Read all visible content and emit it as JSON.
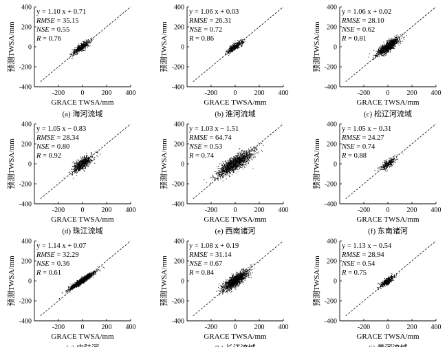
{
  "chart_data": [
    {
      "type": "scatter",
      "caption": "(a) 海河流域",
      "xlabel": "GRACE TWSA/mm",
      "ylabel": "预测TWSA/mm",
      "xlim": [
        -400,
        400
      ],
      "ylim": [
        -400,
        400
      ],
      "xticks": [
        -200,
        0,
        200,
        400
      ],
      "yticks": [
        -400,
        -200,
        0,
        200,
        400
      ],
      "equation": "y = 1.10 x + 0.71",
      "rmse": "35.15",
      "nse": "0.55",
      "r": "0.76",
      "cloud": {
        "x_center": -10,
        "y_center": -5,
        "x_spread": 70,
        "y_spread": 40,
        "n": 500
      }
    },
    {
      "type": "scatter",
      "caption": "(b) 淮河流域",
      "xlabel": "GRACE TWSA/mm",
      "ylabel": "预测TWSA/mm",
      "xlim": [
        -400,
        400
      ],
      "ylim": [
        -400,
        400
      ],
      "xticks": [
        -200,
        0,
        200,
        400
      ],
      "yticks": [
        -400,
        -200,
        0,
        200,
        400
      ],
      "equation": "y = 1.06 x + 0.03",
      "rmse": "26.31",
      "nse": "0.72",
      "r": "0.86",
      "cloud": {
        "x_center": 0,
        "y_center": 0,
        "x_spread": 60,
        "y_spread": 40,
        "n": 450
      }
    },
    {
      "type": "scatter",
      "caption": "(c) 松辽河流域",
      "xlabel": "GRACE TWSA/mm",
      "ylabel": "预测TWSA/mm",
      "xlim": [
        -400,
        400
      ],
      "ylim": [
        -400,
        400
      ],
      "xticks": [
        -200,
        0,
        200,
        400
      ],
      "yticks": [
        -400,
        -200,
        0,
        200,
        400
      ],
      "equation": "y = 1.06 x + 0.02",
      "rmse": "28.10",
      "nse": "0.62",
      "r": "0.81",
      "cloud": {
        "x_center": 0,
        "y_center": 0,
        "x_spread": 85,
        "y_spread": 55,
        "n": 1200
      }
    },
    {
      "type": "scatter",
      "caption": "(d) 珠江流域",
      "xlabel": "GRACE TWSA/mm",
      "ylabel": "预测TWSA/mm",
      "xlim": [
        -400,
        400
      ],
      "ylim": [
        -400,
        400
      ],
      "xticks": [
        -200,
        0,
        200,
        400
      ],
      "yticks": [
        -400,
        -200,
        0,
        200,
        400
      ],
      "equation": "y = 1.05 x − 0.83",
      "rmse": "28.34",
      "nse": "0.80",
      "r": "0.92",
      "cloud": {
        "x_center": 0,
        "y_center": 0,
        "x_spread": 75,
        "y_spread": 65,
        "n": 700
      }
    },
    {
      "type": "scatter",
      "caption": "(e) 西南诸河",
      "xlabel": "GRACE TWSA/mm",
      "ylabel": "预测TWSA/mm",
      "xlim": [
        -400,
        400
      ],
      "ylim": [
        -400,
        400
      ],
      "xticks": [
        -200,
        0,
        200,
        400
      ],
      "yticks": [
        -400,
        -200,
        0,
        200,
        400
      ],
      "equation": "y = 1.03 x − 1.51",
      "rmse": "64.74",
      "nse": "0.53",
      "r": "0.74",
      "cloud": {
        "x_center": 0,
        "y_center": 5,
        "x_spread": 140,
        "y_spread": 80,
        "n": 1500
      }
    },
    {
      "type": "scatter",
      "caption": "(f) 东南诸河",
      "xlabel": "GRACE TWSA/mm",
      "ylabel": "预测TWSA/mm",
      "xlim": [
        -400,
        400
      ],
      "ylim": [
        -400,
        400
      ],
      "xticks": [
        -200,
        0,
        200,
        400
      ],
      "yticks": [
        -400,
        -200,
        0,
        200,
        400
      ],
      "equation": "y = 1.05 x − 0.31",
      "rmse": "24.27",
      "nse": "0.74",
      "r": "0.88",
      "cloud": {
        "x_center": 0,
        "y_center": 0,
        "x_spread": 60,
        "y_spread": 45,
        "n": 300
      }
    },
    {
      "type": "scatter",
      "caption": "(g) 内陆河",
      "xlabel": "GRACE TWSA/mm",
      "ylabel": "预测TWSA/mm",
      "xlim": [
        -400,
        400
      ],
      "ylim": [
        -400,
        400
      ],
      "xticks": [
        -200,
        0,
        200,
        400
      ],
      "yticks": [
        -400,
        -200,
        0,
        200,
        400
      ],
      "equation": "y = 1.14 x + 0.07",
      "rmse": "32.29",
      "nse": "0.36",
      "r": "0.61",
      "cloud": {
        "x_center": -5,
        "y_center": 0,
        "x_spread": 90,
        "y_spread": 30,
        "n": 1400
      }
    },
    {
      "type": "scatter",
      "caption": "(h) 长江流域",
      "xlabel": "GRACE TWSA/mm",
      "ylabel": "预测TWSA/mm",
      "xlim": [
        -400,
        400
      ],
      "ylim": [
        -400,
        400
      ],
      "xticks": [
        -200,
        0,
        200,
        400
      ],
      "yticks": [
        -400,
        -200,
        0,
        200,
        400
      ],
      "equation": "y = 1.08 x + 0.19",
      "rmse": "31.14",
      "nse": "0.67",
      "r": "0.84",
      "cloud": {
        "x_center": 0,
        "y_center": 0,
        "x_spread": 95,
        "y_spread": 65,
        "n": 1400
      }
    },
    {
      "type": "scatter",
      "caption": "(i) 黄河流域",
      "xlabel": "GRACE TWSA/mm",
      "ylabel": "预测TWSA/mm",
      "xlim": [
        -400,
        400
      ],
      "ylim": [
        -400,
        400
      ],
      "xticks": [
        -200,
        0,
        200,
        400
      ],
      "yticks": [
        -400,
        -200,
        0,
        200,
        400
      ],
      "equation": "y = 1.13 x − 0.54",
      "rmse": "28.94",
      "nse": "0.54",
      "r": "0.75",
      "cloud": {
        "x_center": -5,
        "y_center": -5,
        "x_spread": 55,
        "y_spread": 35,
        "n": 450
      }
    }
  ]
}
